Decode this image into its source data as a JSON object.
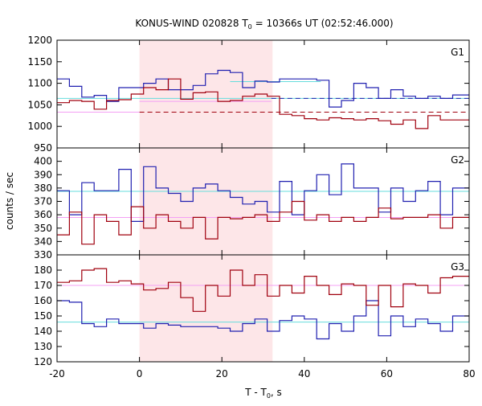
{
  "chart_data": {
    "type": "line",
    "title": "KONUS-WIND 020828 T",
    "title_sub": "0",
    "title_rest": " = 10366s UT (02:52:46.000)",
    "xlabel": "T - T",
    "xlabel_sub": "0",
    "xlabel_rest": ", s",
    "ylabel": "counts / sec",
    "xlim": [
      -20,
      80
    ],
    "x_ticks": [
      -20,
      0,
      20,
      40,
      60,
      80
    ],
    "highlight_interval": [
      0,
      32.3
    ],
    "colors": {
      "red": "#a0000e",
      "blue": "#2020b0",
      "cyan": "#66dddd",
      "pink": "#f4a0f4",
      "shade": "#fde6e8"
    },
    "panels": [
      {
        "label": "G1",
        "ylim": [
          950,
          1200
        ],
        "y_ticks": [
          950,
          1000,
          1050,
          1100,
          1150,
          1200
        ],
        "edges": [
          -20,
          -17,
          -14,
          -11,
          -8,
          -5,
          -2,
          1,
          4,
          7,
          10,
          13,
          16,
          19,
          22,
          25,
          28,
          31,
          34,
          37,
          40,
          43,
          46,
          49,
          52,
          55,
          58,
          61,
          64,
          67,
          70,
          73,
          76,
          79,
          80
        ],
        "series": [
          {
            "color": "blue",
            "values": [
              1110,
              1093,
              1068,
              1072,
              1058,
              1090,
              1090,
              1100,
              1110,
              1085,
              1085,
              1095,
              1122,
              1130,
              1125,
              1090,
              1105,
              1103,
              1110,
              1110,
              1110,
              1107,
              1045,
              1060,
              1100,
              1090,
              1065,
              1085,
              1070,
              1065,
              1070,
              1065,
              1073,
              1073
            ]
          },
          {
            "color": "red",
            "values": [
              1055,
              1060,
              1058,
              1040,
              1060,
              1062,
              1075,
              1090,
              1085,
              1110,
              1063,
              1078,
              1080,
              1058,
              1060,
              1070,
              1075,
              1070,
              1028,
              1025,
              1018,
              1015,
              1020,
              1018,
              1015,
              1018,
              1013,
              1005,
              1015,
              995,
              1025,
              1015,
              1015,
              1015
            ]
          }
        ],
        "levels": [
          {
            "color": "cyan",
            "value": 1065,
            "from": -20,
            "to": 80,
            "dash": false
          },
          {
            "color": "blue",
            "value": 1065,
            "from": 32,
            "to": 80,
            "dash": true
          },
          {
            "color": "red",
            "value": 1033,
            "from": 0,
            "to": 80,
            "dash": true
          },
          {
            "color": "pink",
            "value": 1033,
            "from": -20,
            "to": 0,
            "dash": false
          },
          {
            "color": "cyan",
            "value": 1104,
            "from": 22,
            "to": 44,
            "dash": false
          },
          {
            "color": "pink",
            "value": 1058,
            "from": 0,
            "to": 32,
            "dash": false
          }
        ]
      },
      {
        "label": "G2",
        "ylim": [
          330,
          410
        ],
        "y_ticks": [
          330,
          340,
          350,
          360,
          370,
          380,
          390,
          400
        ],
        "edges": [
          -20,
          -17,
          -14,
          -11,
          -8,
          -5,
          -2,
          1,
          4,
          7,
          10,
          13,
          16,
          19,
          22,
          25,
          28,
          31,
          34,
          37,
          40,
          43,
          46,
          49,
          52,
          55,
          58,
          61,
          64,
          67,
          70,
          73,
          76,
          79,
          80
        ],
        "series": [
          {
            "color": "blue",
            "values": [
              378,
              360,
              384,
              378,
              378,
              394,
              355,
              396,
              380,
              376,
              370,
              380,
              383,
              378,
              373,
              368,
              370,
              362,
              385,
              360,
              378,
              390,
              375,
              398,
              380,
              380,
              362,
              380,
              370,
              378,
              385,
              360,
              380,
              380
            ]
          },
          {
            "color": "red",
            "values": [
              345,
              362,
              338,
              360,
              355,
              345,
              366,
              350,
              360,
              355,
              350,
              358,
              342,
              358,
              357,
              358,
              360,
              355,
              362,
              370,
              356,
              360,
              355,
              358,
              355,
              358,
              365,
              357,
              358,
              358,
              360,
              350,
              358,
              358
            ]
          }
        ],
        "levels": [
          {
            "color": "cyan",
            "value": 377.5,
            "from": -20,
            "to": 80,
            "dash": false
          },
          {
            "color": "pink",
            "value": 358,
            "from": -20,
            "to": 80,
            "dash": false
          }
        ]
      },
      {
        "label": "G3",
        "ylim": [
          120,
          190
        ],
        "y_ticks": [
          120,
          130,
          140,
          150,
          160,
          170,
          180
        ],
        "edges": [
          -20,
          -17,
          -14,
          -11,
          -8,
          -5,
          -2,
          1,
          4,
          7,
          10,
          13,
          16,
          19,
          22,
          25,
          28,
          31,
          34,
          37,
          40,
          43,
          46,
          49,
          52,
          55,
          58,
          61,
          64,
          67,
          70,
          73,
          76,
          79,
          80
        ],
        "series": [
          {
            "color": "blue",
            "values": [
              160,
              159,
              145,
              143,
              148,
              145,
              145,
              142,
              145,
              144,
              143,
              143,
              143,
              142,
              140,
              145,
              148,
              140,
              147,
              150,
              148,
              135,
              145,
              140,
              150,
              160,
              137,
              150,
              143,
              148,
              145,
              140,
              150,
              150
            ]
          },
          {
            "color": "red",
            "values": [
              172,
              173,
              180,
              181,
              172,
              173,
              171,
              167,
              168,
              172,
              162,
              153,
              170,
              163,
              180,
              170,
              177,
              163,
              170,
              165,
              176,
              170,
              164,
              171,
              170,
              157,
              170,
              156,
              171,
              170,
              165,
              175,
              176,
              176
            ]
          }
        ],
        "levels": [
          {
            "color": "cyan",
            "value": 146,
            "from": -20,
            "to": 80,
            "dash": false
          },
          {
            "color": "pink",
            "value": 170,
            "from": -20,
            "to": 80,
            "dash": false
          }
        ]
      }
    ]
  }
}
